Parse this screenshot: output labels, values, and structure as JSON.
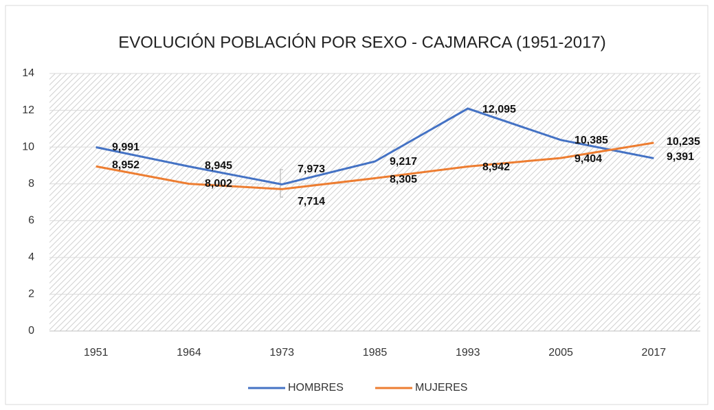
{
  "chart_data": {
    "type": "line",
    "title": "EVOLUCIÓN POBLACIÓN POR SEXO - CAJMARCA (1951-2017)",
    "categories": [
      "1951",
      "1964",
      "1973",
      "1985",
      "1993",
      "2005",
      "2017"
    ],
    "series": [
      {
        "name": "HOMBRES",
        "color": "#4472c4",
        "values": [
          9.991,
          8.945,
          7.973,
          9.217,
          12.095,
          10.385,
          9.391
        ],
        "value_labels": [
          "9,991",
          "8,945",
          "7,973",
          "9,217",
          "12,095",
          "10,385",
          "9,391"
        ]
      },
      {
        "name": "MUJERES",
        "color": "#ed7d31",
        "values": [
          8.952,
          8.002,
          7.714,
          8.305,
          8.942,
          9.404,
          10.235
        ],
        "value_labels": [
          "8,952",
          "8,002",
          "7,714",
          "8,305",
          "8,942",
          "9,404",
          "10,235"
        ]
      }
    ],
    "ylim": [
      0,
      14
    ],
    "yticks": [
      0,
      2,
      4,
      6,
      8,
      10,
      12,
      14
    ],
    "grid": true,
    "legend": "bottom"
  }
}
